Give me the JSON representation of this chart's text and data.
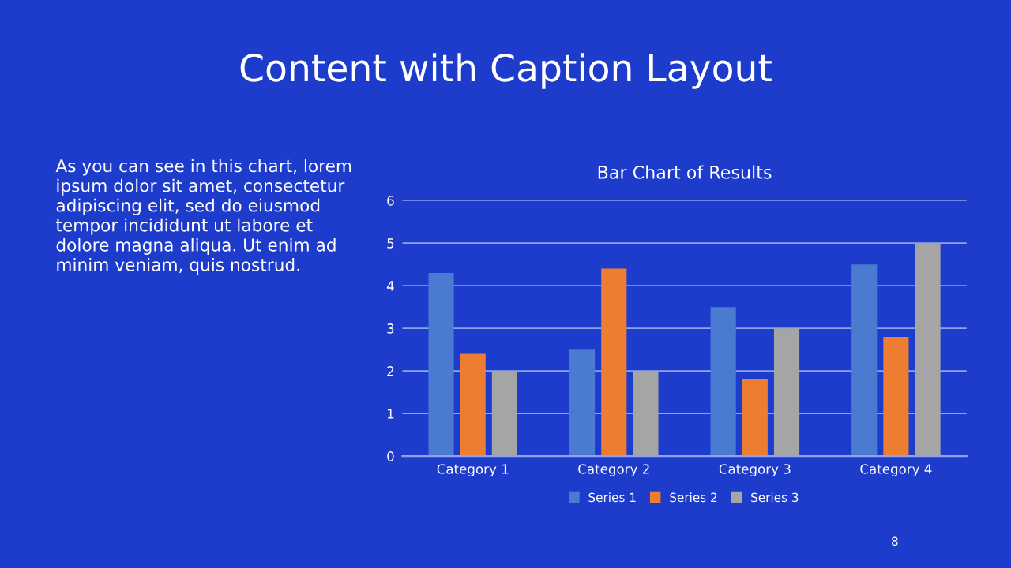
{
  "chart_data": {
    "type": "bar",
    "title": "Content with Caption Layout",
    "subtitle": "Bar Chart of Results",
    "categories": [
      "Category 1",
      "Category 2",
      "Category 3",
      "Category 4"
    ],
    "series": [
      {
        "name": "Series 1",
        "color": "#4a7bd0",
        "values": [
          4.3,
          2.5,
          3.5,
          4.5
        ]
      },
      {
        "name": "Series 2",
        "color": "#ed7d31",
        "values": [
          2.4,
          4.4,
          1.8,
          2.8
        ]
      },
      {
        "name": "Series 3",
        "color": "#a5a5a5",
        "values": [
          2,
          2,
          3,
          5
        ]
      }
    ],
    "ylim": [
      0,
      6
    ],
    "yticks": [
      0,
      1,
      2,
      3,
      4,
      5,
      6
    ],
    "grid": "y",
    "legend": "bottom",
    "annotations": [
      "As you can see in this chart, lorem ipsum dolor sit amet, consectetur adipiscing elit, sed do eiusmod tempor incididunt ut labore et dolore magna aliqua. Ut enim ad minim veniam, quis nostrud.",
      "8"
    ]
  }
}
